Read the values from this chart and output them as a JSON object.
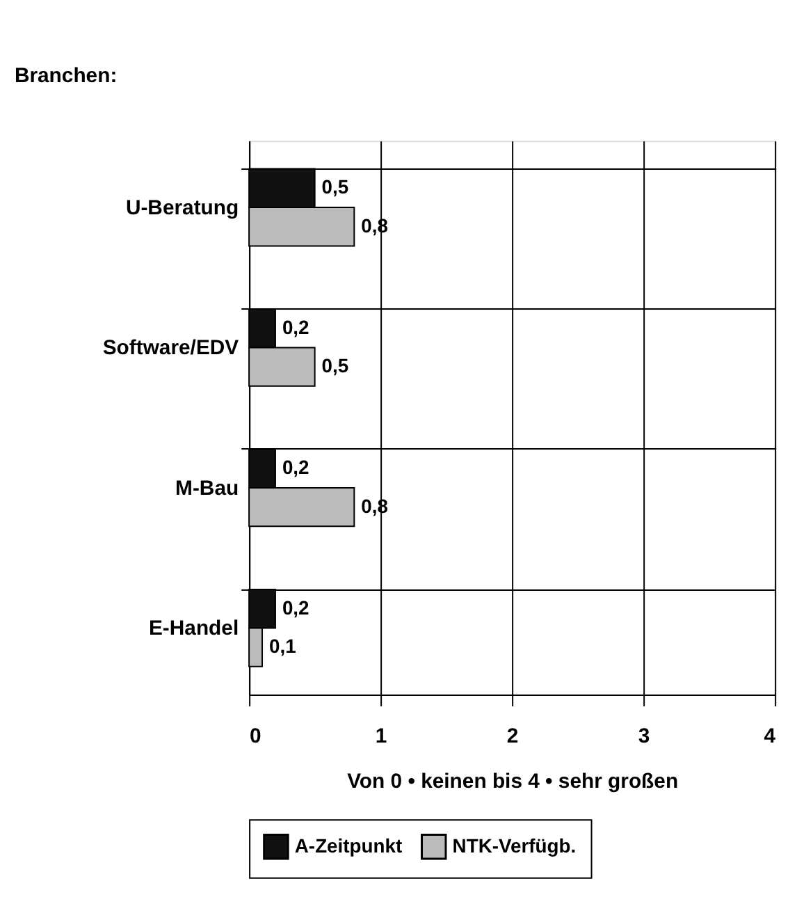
{
  "chart_data": {
    "type": "bar",
    "orientation": "horizontal",
    "ylabel": "Branchen:",
    "xlabel": "Von 0 • keinen bis 4 • sehr großen",
    "categories": [
      "U-Beratung",
      "Software/EDV",
      "M-Bau",
      "E-Handel"
    ],
    "series": [
      {
        "name": "A-Zeitpunkt",
        "color": "#111111",
        "values": [
          0.5,
          0.2,
          0.2,
          0.2
        ],
        "value_labels": [
          "0,5",
          "0,2",
          "0,2",
          "0,2"
        ]
      },
      {
        "name": "NTK-Verfügb.",
        "color": "#bbbbbb",
        "values": [
          0.8,
          0.5,
          0.8,
          0.1
        ],
        "value_labels": [
          "0,8",
          "0,5",
          "0,8",
          "0,1"
        ]
      }
    ],
    "xlim": [
      0,
      4
    ],
    "xticks": [
      0,
      1,
      2,
      3,
      4
    ],
    "grid": true,
    "legend": "bottom"
  }
}
